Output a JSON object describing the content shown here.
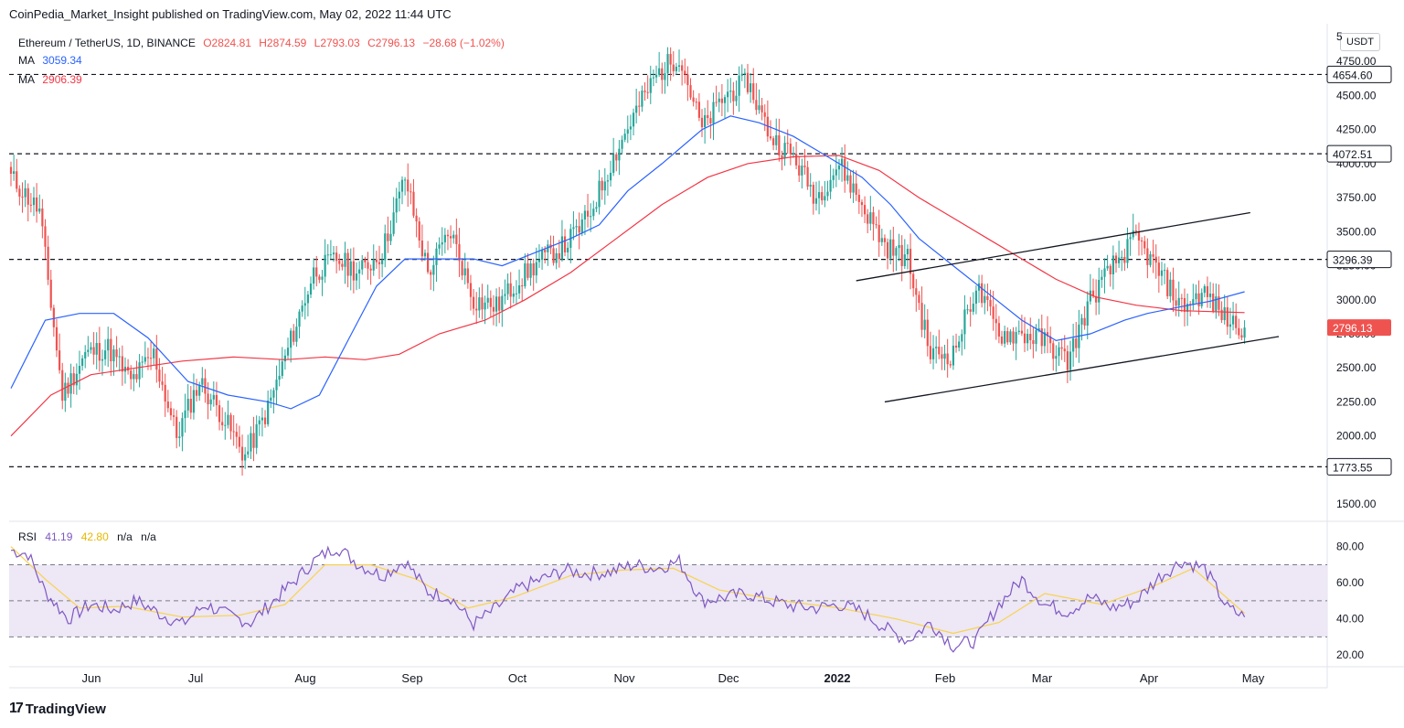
{
  "header": {
    "attribution": "CoinPedia_Market_Insight published on TradingView.com, May 02, 2022 11:44 UTC"
  },
  "legend": {
    "symbol": "Ethereum / TetherUS, 1D, BINANCE",
    "open": "O2824.81",
    "high": "H2874.59",
    "low": "L2793.03",
    "close": "C2796.13",
    "change": "−28.68 (−1.02%)",
    "ma1_label": "MA",
    "ma1_value": "3059.34",
    "ma2_label": "MA",
    "ma2_value": "2906.39"
  },
  "rsi_legend": {
    "label": "RSI",
    "value": "41.19",
    "ma_value": "42.80",
    "na1": "n/a",
    "na2": "n/a"
  },
  "currency_button": "USDT",
  "footer": {
    "logo": "17",
    "brand": "TradingView"
  },
  "colors": {
    "up": "#26a69a",
    "down": "#ef5350",
    "ma_fast": "#2962ff",
    "ma_slow": "#f23645",
    "rsi": "#7e57c2",
    "rsi_ma": "#f9d34a",
    "rsi_band": "#ede7f6"
  },
  "chart_data": {
    "type": "candlestick",
    "x_ticks": [
      "Jun",
      "Jul",
      "Aug",
      "Sep",
      "Oct",
      "Nov",
      "Dec",
      "2022",
      "Feb",
      "Mar",
      "Apr",
      "May"
    ],
    "y_ticks": [
      "1500.00",
      "2000.00",
      "2250.00",
      "2500.00",
      "2750.00",
      "3000.00",
      "3250.00",
      "3500.00",
      "3750.00",
      "4000.00",
      "4250.00",
      "4500.00",
      "4750.00",
      "5"
    ],
    "ylim": [
      1400,
      5000
    ],
    "price_levels": [
      {
        "label": "4654.60",
        "value": 4654.6
      },
      {
        "label": "4072.51",
        "value": 4072.51
      },
      {
        "label": "3296.39",
        "value": 3296.39
      },
      {
        "label": "1773.55",
        "value": 1773.55
      }
    ],
    "last_price": {
      "label": "2796.13",
      "value": 2796.13
    },
    "key_points": [
      [
        0,
        3900
      ],
      [
        10,
        3650
      ],
      [
        18,
        2300
      ],
      [
        26,
        2600
      ],
      [
        34,
        2650
      ],
      [
        42,
        2400
      ],
      [
        50,
        2600
      ],
      [
        58,
        2000
      ],
      [
        66,
        2400
      ],
      [
        74,
        2150
      ],
      [
        82,
        1850
      ],
      [
        90,
        2200
      ],
      [
        98,
        2700
      ],
      [
        106,
        3200
      ],
      [
        114,
        3300
      ],
      [
        122,
        3200
      ],
      [
        130,
        3350
      ],
      [
        138,
        3900
      ],
      [
        146,
        3200
      ],
      [
        154,
        3500
      ],
      [
        162,
        3000
      ],
      [
        170,
        2950
      ],
      [
        178,
        3150
      ],
      [
        186,
        3300
      ],
      [
        194,
        3400
      ],
      [
        202,
        3600
      ],
      [
        210,
        4000
      ],
      [
        218,
        4350
      ],
      [
        226,
        4650
      ],
      [
        234,
        4800
      ],
      [
        242,
        4250
      ],
      [
        250,
        4500
      ],
      [
        258,
        4600
      ],
      [
        266,
        4200
      ],
      [
        274,
        4050
      ],
      [
        282,
        3750
      ],
      [
        290,
        4000
      ],
      [
        298,
        3700
      ],
      [
        306,
        3400
      ],
      [
        314,
        3300
      ],
      [
        322,
        2600
      ],
      [
        330,
        2600
      ],
      [
        338,
        3100
      ],
      [
        346,
        2750
      ],
      [
        354,
        2750
      ],
      [
        362,
        2700
      ],
      [
        370,
        2550
      ],
      [
        378,
        3000
      ],
      [
        386,
        3250
      ],
      [
        394,
        3450
      ],
      [
        402,
        3200
      ],
      [
        410,
        2950
      ],
      [
        418,
        3050
      ],
      [
        426,
        2850
      ],
      [
        432,
        2796
      ]
    ],
    "ma_fast": {
      "label": "MA",
      "points": [
        [
          0,
          2350
        ],
        [
          12,
          2850
        ],
        [
          24,
          2900
        ],
        [
          36,
          2900
        ],
        [
          48,
          2720
        ],
        [
          62,
          2400
        ],
        [
          76,
          2300
        ],
        [
          90,
          2250
        ],
        [
          98,
          2200
        ],
        [
          108,
          2300
        ],
        [
          118,
          2700
        ],
        [
          128,
          3100
        ],
        [
          138,
          3300
        ],
        [
          150,
          3300
        ],
        [
          162,
          3300
        ],
        [
          172,
          3250
        ],
        [
          184,
          3350
        ],
        [
          196,
          3450
        ],
        [
          206,
          3550
        ],
        [
          216,
          3800
        ],
        [
          228,
          4000
        ],
        [
          242,
          4250
        ],
        [
          252,
          4350
        ],
        [
          262,
          4300
        ],
        [
          274,
          4200
        ],
        [
          286,
          4050
        ],
        [
          298,
          3900
        ],
        [
          308,
          3700
        ],
        [
          318,
          3450
        ],
        [
          330,
          3250
        ],
        [
          342,
          3050
        ],
        [
          354,
          2850
        ],
        [
          366,
          2700
        ],
        [
          378,
          2750
        ],
        [
          390,
          2850
        ],
        [
          398,
          2900
        ],
        [
          410,
          2950
        ],
        [
          420,
          2990
        ],
        [
          432,
          3059
        ]
      ]
    },
    "ma_slow": {
      "label": "MA",
      "points": [
        [
          0,
          2000
        ],
        [
          14,
          2300
        ],
        [
          28,
          2450
        ],
        [
          44,
          2500
        ],
        [
          60,
          2550
        ],
        [
          78,
          2580
        ],
        [
          96,
          2560
        ],
        [
          110,
          2580
        ],
        [
          124,
          2560
        ],
        [
          136,
          2600
        ],
        [
          150,
          2750
        ],
        [
          166,
          2850
        ],
        [
          180,
          3000
        ],
        [
          196,
          3200
        ],
        [
          212,
          3450
        ],
        [
          228,
          3700
        ],
        [
          244,
          3900
        ],
        [
          258,
          4000
        ],
        [
          274,
          4050
        ],
        [
          290,
          4060
        ],
        [
          304,
          3950
        ],
        [
          318,
          3750
        ],
        [
          330,
          3600
        ],
        [
          342,
          3450
        ],
        [
          354,
          3300
        ],
        [
          366,
          3150
        ],
        [
          380,
          3020
        ],
        [
          394,
          2960
        ],
        [
          410,
          2920
        ],
        [
          432,
          2906
        ]
      ]
    },
    "channel": {
      "upper": [
        [
          296,
          3140
        ],
        [
          434,
          3640
        ]
      ],
      "lower": [
        [
          306,
          2250
        ],
        [
          444,
          2730
        ]
      ]
    },
    "rsi": {
      "ylim": [
        15,
        90
      ],
      "y_ticks": [
        "20.00",
        "40.00",
        "60.00",
        "80.00"
      ],
      "levels": [
        30,
        50,
        70
      ],
      "key_points": [
        [
          0,
          78
        ],
        [
          6,
          76
        ],
        [
          12,
          55
        ],
        [
          20,
          40
        ],
        [
          28,
          48
        ],
        [
          36,
          45
        ],
        [
          44,
          50
        ],
        [
          52,
          43
        ],
        [
          60,
          37
        ],
        [
          68,
          48
        ],
        [
          76,
          42
        ],
        [
          84,
          38
        ],
        [
          92,
          50
        ],
        [
          100,
          62
        ],
        [
          106,
          72
        ],
        [
          114,
          80
        ],
        [
          122,
          70
        ],
        [
          130,
          64
        ],
        [
          138,
          72
        ],
        [
          146,
          55
        ],
        [
          154,
          52
        ],
        [
          162,
          37
        ],
        [
          170,
          46
        ],
        [
          178,
          57
        ],
        [
          186,
          62
        ],
        [
          194,
          67
        ],
        [
          202,
          65
        ],
        [
          210,
          66
        ],
        [
          218,
          70
        ],
        [
          226,
          68
        ],
        [
          234,
          72
        ],
        [
          242,
          50
        ],
        [
          250,
          52
        ],
        [
          258,
          54
        ],
        [
          266,
          50
        ],
        [
          274,
          47
        ],
        [
          282,
          46
        ],
        [
          290,
          48
        ],
        [
          298,
          44
        ],
        [
          306,
          35
        ],
        [
          314,
          28
        ],
        [
          322,
          38
        ],
        [
          330,
          25
        ],
        [
          338,
          28
        ],
        [
          346,
          48
        ],
        [
          354,
          62
        ],
        [
          362,
          48
        ],
        [
          370,
          44
        ],
        [
          378,
          52
        ],
        [
          386,
          46
        ],
        [
          394,
          50
        ],
        [
          402,
          63
        ],
        [
          410,
          72
        ],
        [
          418,
          68
        ],
        [
          426,
          46
        ],
        [
          432,
          41
        ]
      ],
      "ma_key_points": [
        [
          0,
          80
        ],
        [
          12,
          62
        ],
        [
          24,
          46
        ],
        [
          40,
          47
        ],
        [
          60,
          41
        ],
        [
          80,
          42
        ],
        [
          96,
          48
        ],
        [
          110,
          70
        ],
        [
          126,
          70
        ],
        [
          142,
          62
        ],
        [
          160,
          46
        ],
        [
          176,
          52
        ],
        [
          196,
          64
        ],
        [
          214,
          67
        ],
        [
          232,
          68
        ],
        [
          248,
          56
        ],
        [
          270,
          50
        ],
        [
          290,
          46
        ],
        [
          310,
          40
        ],
        [
          330,
          32
        ],
        [
          346,
          38
        ],
        [
          362,
          54
        ],
        [
          382,
          48
        ],
        [
          400,
          58
        ],
        [
          414,
          68
        ],
        [
          432,
          43
        ]
      ]
    }
  }
}
